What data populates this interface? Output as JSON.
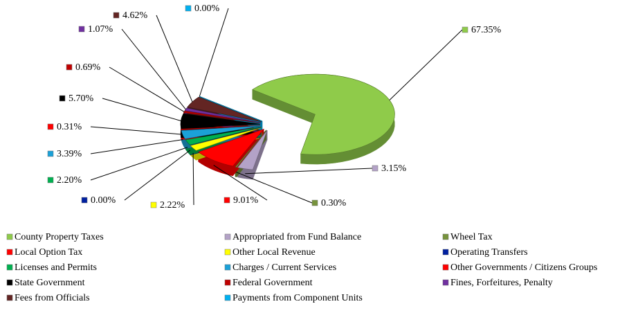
{
  "chart_data": {
    "type": "pie",
    "categories": [
      "County Property Taxes",
      "Appropriated from Fund Balance",
      "Wheel Tax",
      "Local Option Tax",
      "Other Local Revenue",
      "Operating Transfers",
      "Licenses and Permits",
      "Charges / Current Services",
      "Other Governments / Citizens Groups",
      "State Government",
      "Federal Government",
      "Fines, Forfeitures, Penalty",
      "Fees from Officials",
      "Payments from Component Units"
    ],
    "values": [
      67.35,
      3.15,
      0.3,
      9.01,
      2.22,
      0.0,
      2.2,
      3.39,
      0.31,
      5.7,
      0.69,
      1.07,
      4.62,
      0.0
    ],
    "value_labels": [
      "67.35%",
      "3.15%",
      "0.30%",
      "9.01%",
      "2.22%",
      "0.00%",
      "2.20%",
      "3.39%",
      "0.31%",
      "5.70%",
      "0.69%",
      "1.07%",
      "4.62%",
      "0.00%"
    ],
    "colors": [
      "#8fcb4a",
      "#b3a2c7",
      "#77933c",
      "#ff0000",
      "#ffff00",
      "#0020a0",
      "#00b050",
      "#1ba1d8",
      "#ff0000",
      "#000000",
      "#c00000",
      "#7030a0",
      "#632523",
      "#00b0f0"
    ]
  }
}
